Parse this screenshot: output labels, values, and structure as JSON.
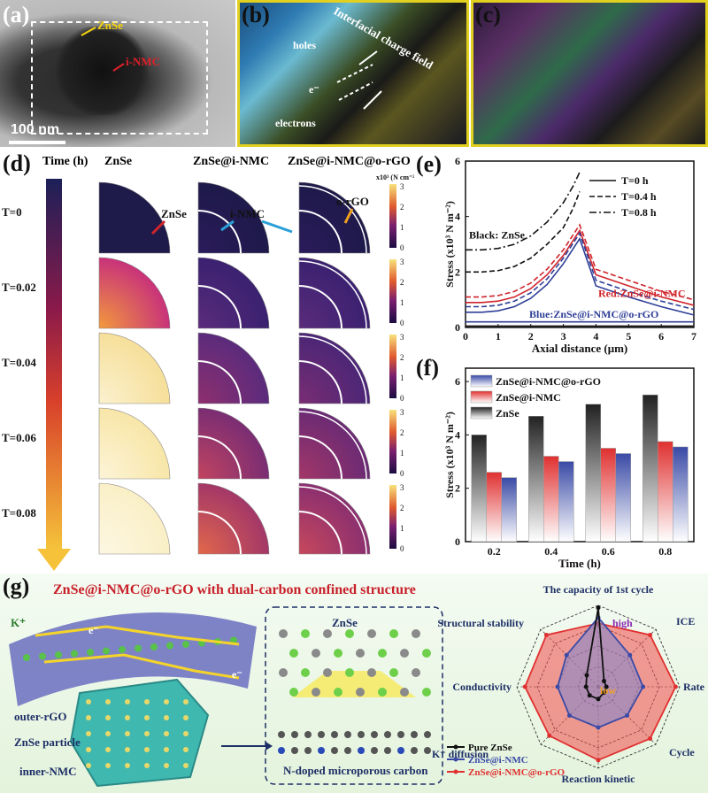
{
  "panel_labels": {
    "a": "(a)",
    "b": "(b)",
    "c": "(c)",
    "d": "(d)",
    "e": "(e)",
    "f": "(f)",
    "g": "(g)"
  },
  "panel_a": {
    "zn_label": "ZnSe",
    "nmc_label": "i-NMC",
    "scale_bar": "100 nm"
  },
  "panel_b": {
    "field_label": "Interfacial charge field",
    "holes": "holes",
    "electrons": "electrons",
    "e_symbol": "e⁻"
  },
  "panel_d": {
    "time_header": "Time (h)",
    "col_headers": [
      "ZnSe",
      "ZnSe@i-NMC",
      "ZnSe@i-NMC@o-rGO"
    ],
    "row_labels": [
      "T=0",
      "T=0.02",
      "T=0.04",
      "T=0.06",
      "T=0.08"
    ],
    "annot_znse": "ZnSe",
    "annot_inmc": "i-NMC",
    "annot_orgo": "o-rGO",
    "colorbar_unit": "x10³ (N cm⁻²)",
    "colorbar_ticks": [
      "3",
      "2",
      "1",
      "0"
    ]
  },
  "chart_data": [
    {
      "type": "line",
      "panel": "e",
      "xlabel": "Axial distance (μm)",
      "ylabel": "Stress (x10³ N m⁻²)",
      "xlim": [
        0,
        7
      ],
      "ylim": [
        0,
        6
      ],
      "xticks": [
        "0",
        "1",
        "2",
        "3",
        "4",
        "5",
        "6",
        "7"
      ],
      "yticks": [
        "0",
        "2",
        "4",
        "6"
      ],
      "legend": [
        {
          "label": "T=0 h",
          "dash": "solid"
        },
        {
          "label": "T=0.4 h",
          "dash": "dashed"
        },
        {
          "label": "T=0.8 h",
          "dash": "dashdot"
        }
      ],
      "group_labels": {
        "black": "Black: ZnSe",
        "red": "Red:ZnSe@i-NMC",
        "blue": "Blue:ZnSe@i-NMC@o-rGO"
      },
      "series": [
        {
          "group": "ZnSe",
          "color": "#111111",
          "t": "0.8",
          "x": [
            0,
            0.5,
            1,
            1.5,
            2,
            2.5,
            3,
            3.3,
            3.5
          ],
          "y": [
            2.8,
            2.8,
            2.85,
            3.0,
            3.3,
            3.8,
            4.5,
            5.1,
            5.6
          ]
        },
        {
          "group": "ZnSe",
          "color": "#111111",
          "t": "0.4",
          "x": [
            0,
            0.5,
            1,
            1.5,
            2,
            2.5,
            3,
            3.3,
            3.5
          ],
          "y": [
            2.0,
            2.0,
            2.05,
            2.2,
            2.5,
            3.0,
            3.6,
            4.3,
            4.9
          ]
        },
        {
          "group": "ZnSe",
          "color": "#111111",
          "t": "0",
          "x": [
            0,
            7
          ],
          "y": [
            0.05,
            0.05
          ]
        },
        {
          "group": "ZnSe@i-NMC",
          "color": "#d0242b",
          "t": "0.4",
          "x": [
            0,
            0.5,
            1,
            1.5,
            2,
            2.5,
            3,
            3.5,
            4,
            5,
            6,
            7
          ],
          "y": [
            1.1,
            1.1,
            1.15,
            1.3,
            1.6,
            2.1,
            2.8,
            3.7,
            2.1,
            1.7,
            1.3,
            1.0
          ]
        },
        {
          "group": "ZnSe@i-NMC",
          "color": "#d0242b",
          "t": "0",
          "x": [
            0,
            0.5,
            1,
            1.5,
            2,
            2.5,
            3,
            3.5,
            4,
            5,
            6,
            7
          ],
          "y": [
            0.9,
            0.9,
            0.95,
            1.1,
            1.4,
            1.9,
            2.6,
            3.5,
            1.9,
            1.5,
            1.1,
            0.8
          ]
        },
        {
          "group": "ZnSe@i-NMC@o-rGO",
          "color": "#2f3f97",
          "t": "0.4",
          "x": [
            0,
            0.5,
            1,
            1.5,
            2,
            2.5,
            3,
            3.5,
            4,
            5,
            6,
            7
          ],
          "y": [
            0.75,
            0.75,
            0.8,
            0.95,
            1.25,
            1.75,
            2.5,
            3.4,
            1.7,
            1.3,
            0.95,
            0.65
          ]
        },
        {
          "group": "ZnSe@i-NMC@o-rGO",
          "color": "#2f3f97",
          "t": "0",
          "x": [
            0,
            0.5,
            1,
            1.5,
            2,
            2.5,
            3,
            3.5,
            4,
            5,
            6,
            7
          ],
          "y": [
            0.55,
            0.55,
            0.6,
            0.75,
            1.05,
            1.55,
            2.3,
            3.2,
            1.5,
            1.1,
            0.75,
            0.45
          ]
        },
        {
          "group": "ZnSe@i-NMC@o-rGO",
          "color": "#2f3f97",
          "t": "0",
          "x": [
            0,
            7
          ],
          "y": [
            0.2,
            0.2
          ]
        }
      ]
    },
    {
      "type": "bar",
      "panel": "f",
      "xlabel": "Time (h)",
      "ylabel": "Stress (x10³ N m⁻²)",
      "ylim": [
        0,
        6.5
      ],
      "yticks": [
        "0",
        "2",
        "4",
        "6"
      ],
      "categories": [
        "0.2",
        "0.4",
        "0.6",
        "0.8"
      ],
      "series": [
        {
          "name": "ZnSe",
          "color": "#222222",
          "values": [
            4.0,
            4.7,
            5.15,
            5.5
          ]
        },
        {
          "name": "ZnSe@i-NMC",
          "color": "#e03030",
          "values": [
            2.6,
            3.2,
            3.5,
            3.75
          ]
        },
        {
          "name": "ZnSe@i-NMC@o-rGO",
          "color": "#3a4aa6",
          "values": [
            2.4,
            3.0,
            3.3,
            3.55
          ]
        }
      ],
      "legend_order": [
        "ZnSe@i-NMC@o-rGO",
        "ZnSe@i-NMC",
        "ZnSe"
      ]
    },
    {
      "type": "radar",
      "panel": "g",
      "axes": [
        "The capacity of 1st cycle",
        "ICE",
        "Rate",
        "Cycle",
        "Reaction kinetic",
        "K⁺ diffusion",
        "Conductivity",
        "Structural stability"
      ],
      "high_label": "high",
      "low_label": "low",
      "series": [
        {
          "name": "Pure ZnSe",
          "color": "#111111",
          "values": [
            0.97,
            0.1,
            0.1,
            0.1,
            0.15,
            0.15,
            0.15,
            0.2
          ]
        },
        {
          "name": "ZnSe@i-NMC",
          "color": "#3a4aa6",
          "values": [
            0.85,
            0.55,
            0.55,
            0.5,
            0.5,
            0.5,
            0.5,
            0.55
          ]
        },
        {
          "name": "ZnSe@i-NMC@o-rGO",
          "color": "#e03030",
          "values": [
            0.78,
            0.9,
            0.95,
            0.9,
            0.9,
            0.85,
            0.9,
            0.9
          ]
        }
      ]
    }
  ],
  "panel_g": {
    "title": "ZnSe@i-NMC@o-rGO with dual-carbon confined structure",
    "k_label": "K⁺",
    "outer_rgo": "outer-rGO",
    "znse_particle": "ZnSe particle",
    "inner_nmc": "inner-NMC",
    "znse_lattice": "ZnSe",
    "carbon_label": "N-doped microporous carbon",
    "e_symbol": "e⁻"
  }
}
